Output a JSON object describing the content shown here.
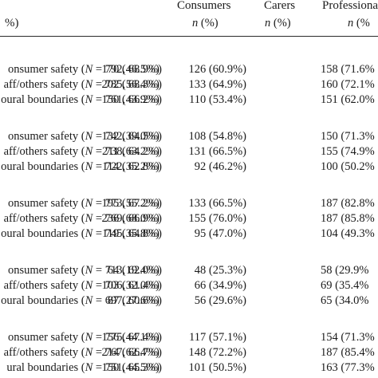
{
  "header": {
    "col0_unit": "%)",
    "columns": [
      {
        "title": "Consumers",
        "sub_n": "n",
        "sub_pct": "(%)"
      },
      {
        "title": "Carers",
        "sub_n": "n",
        "sub_pct": "(%)"
      },
      {
        "title": "Professiona",
        "sub_n": "n",
        "sub_pct": "(%"
      }
    ]
  },
  "groups": [
    {
      "rows": [
        {
          "label": "onsumer safety (N = 792, 68.9%)",
          "consumers": "170 (46.5%)",
          "carers": "126 (60.9%)",
          "professionals": "158 (71.6%"
        },
        {
          "label": "aff/others safety (N = 785, 68.3%)",
          "consumers": "202 (56.4%)",
          "carers": "133 (64.9%)",
          "professionals": "160 (72.1%"
        },
        {
          "label": "oural boundaries (N = 761, 66.2%)",
          "consumers": "150 (43.9%)",
          "carers": "110 (53.4%)",
          "professionals": "151 (62.0%"
        }
      ]
    },
    {
      "rows": [
        {
          "label": "onsumer safety (N = 742, 64.5%)",
          "consumers": "132 (39.0%)",
          "carers": "108 (54.8%)",
          "professionals": "150 (71.3%"
        },
        {
          "label": "aff/others safety (N = 738, 64.2%)",
          "consumers": "211 (63.2%)",
          "carers": "131 (66.5%)",
          "professionals": "155 (74.9%"
        },
        {
          "label": "oural boundaries (N = 722, 62.8%)",
          "consumers": "114 (35.2%)",
          "carers": "92 (46.2%)",
          "professionals": "100 (50.2%"
        }
      ]
    },
    {
      "rows": [
        {
          "label": "onsumer safety (N = 773, 67.2%)",
          "consumers": "195 (55.2%)",
          "carers": "133 (66.5%)",
          "professionals": "187 (82.8%"
        },
        {
          "label": "aff/others safety (N = 769, 66.9%)",
          "consumers": "236 (68.0%)",
          "carers": "155 (76.0%)",
          "professionals": "187 (85.8%"
        },
        {
          "label": "oural boundaries (N = 745, 64.8%)",
          "consumers": "119 (35.8%)",
          "carers": "95 (47.0%)",
          "professionals": "104 (49.3%"
        }
      ]
    },
    {
      "rows": [
        {
          "label": "onsumer safety (N = 713, 62.0%)",
          "consumers": "64 (19.4%)",
          "carers": "48 (25.3%)",
          "professionals": "58 (29.9%"
        },
        {
          "label": "aff/others safety (N = 706, 61.4%)",
          "consumers": "103 (32.0%)",
          "carers": "66 (34.9%)",
          "professionals": "69 (35.4%"
        },
        {
          "label": "oural boundaries (N = 697, 60.6%)",
          "consumers": "87 (27.6%)",
          "carers": "56 (29.6%)",
          "professionals": "65 (34.0%"
        }
      ]
    },
    {
      "rows": [
        {
          "label": "onsumer safety (N = 775, 67.4%)",
          "consumers": "156 (44.1%)",
          "carers": "117 (57.1%)",
          "professionals": "154 (71.3%"
        },
        {
          "label": "aff/others safety (N = 767, 66.7%)",
          "consumers": "214 (62.4%)",
          "carers": "148 (72.2%)",
          "professionals": "187 (85.4%"
        },
        {
          "label": "ural boundaries (N = 751, 65.3%)",
          "consumers": "150 (44.5%)",
          "carers": "101 (50.5%)",
          "professionals": "163 (77.3%"
        }
      ]
    }
  ]
}
